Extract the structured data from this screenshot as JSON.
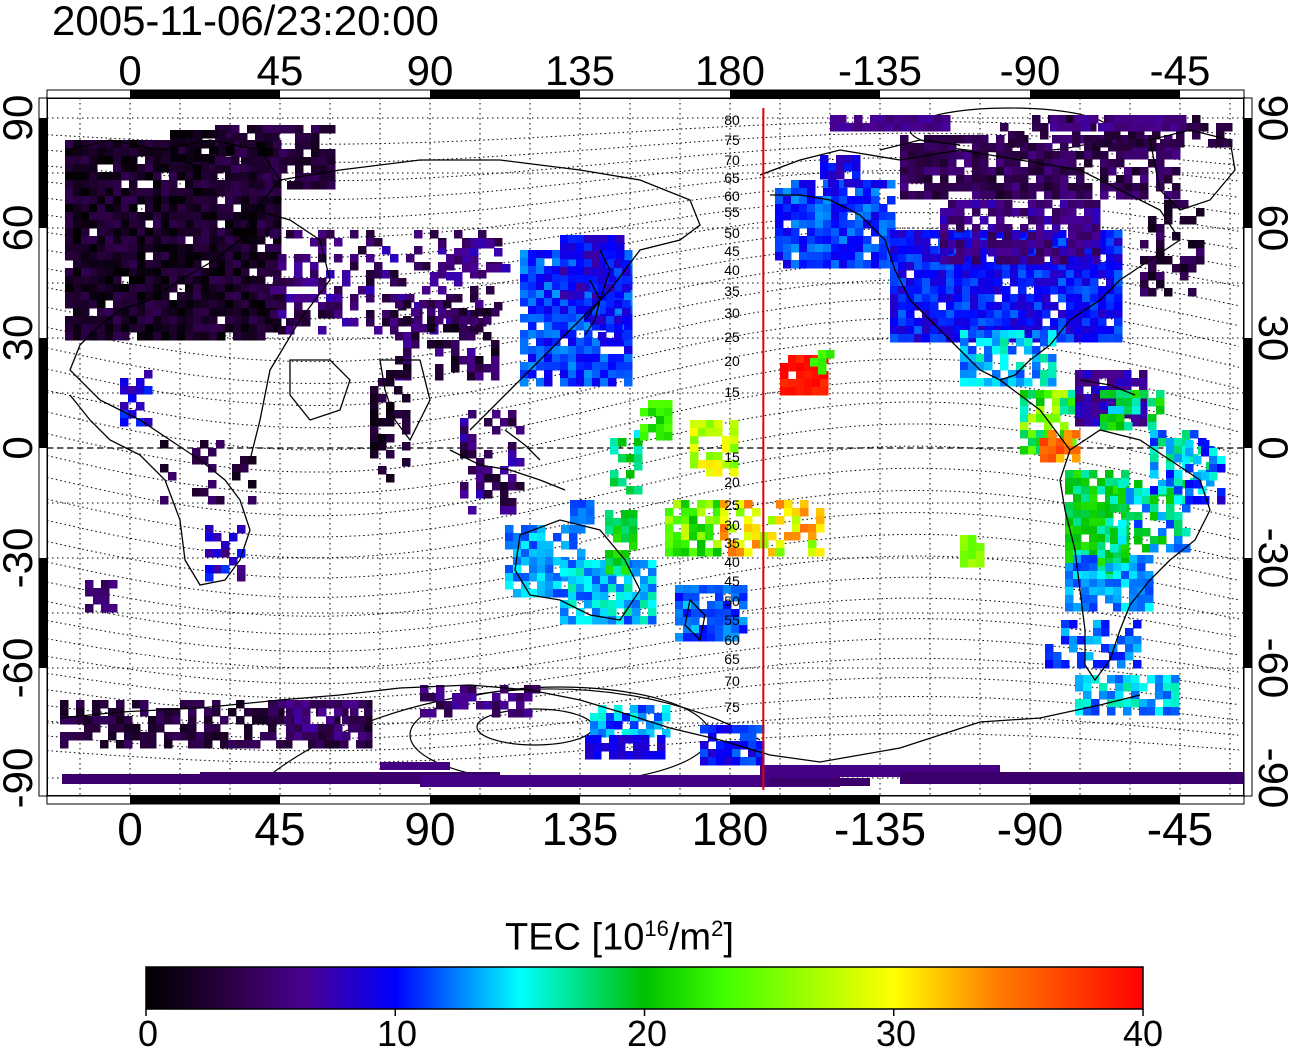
{
  "title": "2005-11-06/23:20:00",
  "map": {
    "projection": "cylindrical-equidistant",
    "center_longitude": 150,
    "lon_tick_labels": [
      "0",
      "45",
      "90",
      "135",
      "180",
      "-135",
      "-90",
      "-45"
    ],
    "lat_tick_labels": [
      "90",
      "60",
      "30",
      "0",
      "-30",
      "-60",
      "-90"
    ],
    "grid": "dotted, 15 degree spacing",
    "contour_labels": [
      "80",
      "75",
      "70",
      "65",
      "60",
      "55",
      "50",
      "45",
      "40",
      "35",
      "30",
      "25",
      "20",
      "15",
      "15",
      "20",
      "25",
      "30",
      "35",
      "40",
      "45",
      "50",
      "55",
      "60",
      "65",
      "70",
      "75"
    ],
    "terminator_line": {
      "longitude": 190,
      "color": "#e00000"
    },
    "coastline_color": "#000000",
    "background": "#ffffff"
  },
  "colorbar": {
    "title_main": "TEC  [10",
    "title_exp1": "16",
    "title_mid": "/m",
    "title_exp2": "2",
    "title_end": "]",
    "min": 0,
    "max": 40,
    "tick_labels": [
      "0",
      "10",
      "20",
      "30",
      "40"
    ],
    "colormap": "rainbow (black-purple-blue-cyan-green-yellow-red)"
  },
  "tec_regions": [
    {
      "name": "Europe",
      "tec": 2
    },
    {
      "name": "Siberia / Central Asia",
      "tec": 5
    },
    {
      "name": "China / Japan",
      "tec": 11
    },
    {
      "name": "India",
      "tec": 3
    },
    {
      "name": "Africa",
      "tec": 6
    },
    {
      "name": "Australia",
      "tec": 13
    },
    {
      "name": "New Zealand",
      "tec": 12
    },
    {
      "name": "Pacific islands",
      "tec": 27
    },
    {
      "name": "Hawaii",
      "tec": 39
    },
    {
      "name": "Alaska",
      "tec": 11
    },
    {
      "name": "North America",
      "tec": 10
    },
    {
      "name": "Canada / Arctic",
      "tec": 4
    },
    {
      "name": "Central America",
      "tec": 33
    },
    {
      "name": "South America",
      "tec": 18
    },
    {
      "name": "Southern South America",
      "tec": 13
    },
    {
      "name": "Antarctica",
      "tec": 6
    }
  ]
}
